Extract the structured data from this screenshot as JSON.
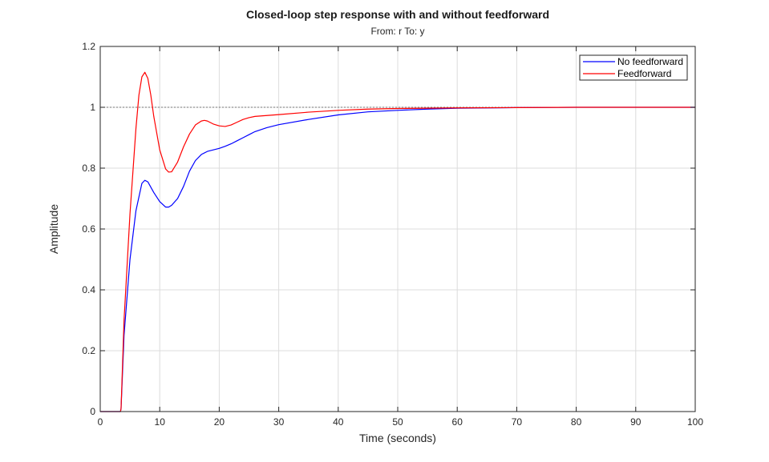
{
  "chart_data": {
    "type": "line",
    "title": "Closed-loop step response with and without feedforward",
    "subtitle": "From: r  To: y",
    "xlabel": "Time (seconds)",
    "ylabel": "Amplitude",
    "xlim": [
      0,
      100
    ],
    "ylim": [
      0,
      1.2
    ],
    "xticks": [
      "0",
      "10",
      "20",
      "30",
      "40",
      "50",
      "60",
      "70",
      "80",
      "90",
      "100"
    ],
    "yticks": [
      "0",
      "0.2",
      "0.4",
      "0.6",
      "0.8",
      "1",
      "1.2"
    ],
    "grid": true,
    "legend_position": "top-right",
    "reference_line": 1,
    "series": [
      {
        "name": "No feedforward",
        "color": "#0000ff",
        "x": [
          0,
          3.4,
          3.5,
          4,
          5,
          6,
          7,
          7.5,
          8,
          9,
          10,
          11,
          11.5,
          12,
          13,
          14,
          15,
          16,
          17,
          18,
          19,
          20,
          21,
          22,
          23,
          24,
          25,
          26,
          28,
          30,
          35,
          40,
          45,
          50,
          55,
          60,
          65,
          70,
          80,
          90,
          100
        ],
        "y": [
          0,
          0,
          0.01,
          0.25,
          0.5,
          0.66,
          0.75,
          0.76,
          0.755,
          0.72,
          0.69,
          0.672,
          0.672,
          0.678,
          0.7,
          0.74,
          0.79,
          0.825,
          0.845,
          0.855,
          0.86,
          0.865,
          0.872,
          0.88,
          0.89,
          0.9,
          0.91,
          0.92,
          0.933,
          0.943,
          0.96,
          0.975,
          0.985,
          0.99,
          0.994,
          0.997,
          0.998,
          0.999,
          1.0,
          1.0,
          1.0
        ]
      },
      {
        "name": "Feedforward",
        "color": "#ff0000",
        "x": [
          0,
          3.4,
          3.5,
          4,
          5,
          6,
          6.5,
          7,
          7.5,
          8,
          8.5,
          9,
          10,
          11,
          11.5,
          12,
          13,
          14,
          15,
          16,
          17,
          17.5,
          18,
          19,
          20,
          21,
          22,
          23,
          24,
          25,
          26,
          28,
          30,
          35,
          40,
          45,
          50,
          60,
          70,
          80,
          90,
          100
        ],
        "y": [
          0,
          0,
          0.01,
          0.3,
          0.65,
          0.93,
          1.04,
          1.1,
          1.115,
          1.095,
          1.04,
          0.97,
          0.86,
          0.797,
          0.787,
          0.788,
          0.82,
          0.87,
          0.912,
          0.942,
          0.955,
          0.957,
          0.955,
          0.945,
          0.939,
          0.937,
          0.942,
          0.951,
          0.96,
          0.966,
          0.97,
          0.973,
          0.976,
          0.984,
          0.99,
          0.994,
          0.996,
          0.998,
          0.999,
          1.0,
          1.0,
          1.0
        ]
      }
    ]
  }
}
